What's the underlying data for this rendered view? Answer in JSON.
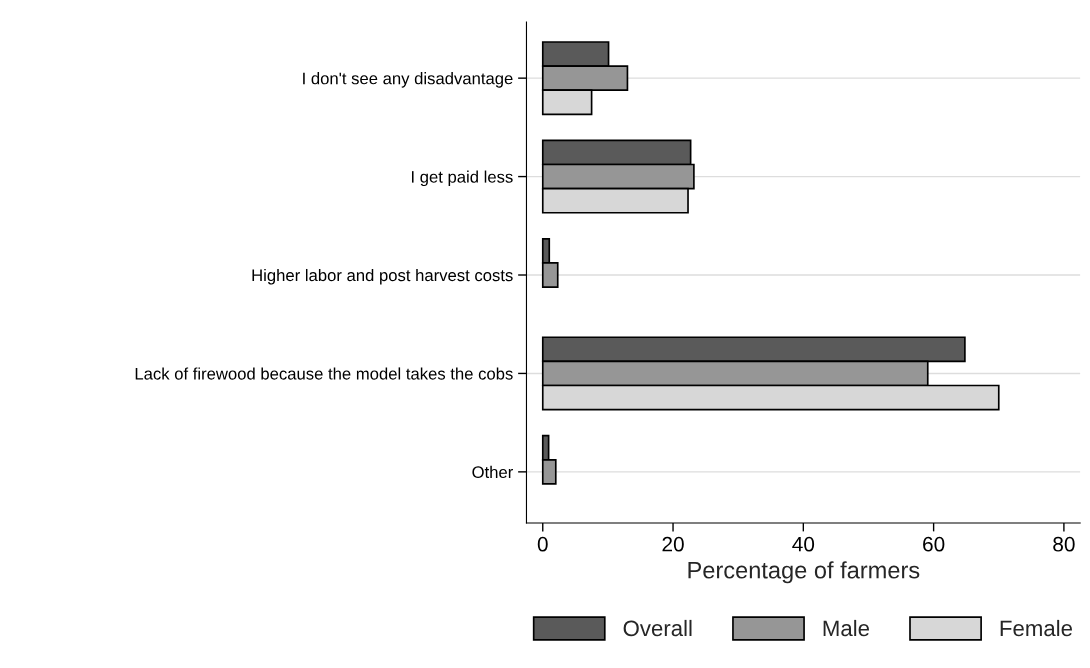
{
  "chart_data": {
    "type": "bar",
    "orientation": "horizontal",
    "xlabel": "Percentage of farmers",
    "categories": [
      "I don't see any disadvantage",
      "I get paid less",
      "Higher labor and post harvest costs",
      "Lack of firewood because the model takes the cobs",
      "Other"
    ],
    "series": [
      {
        "name": "Overall",
        "color": "#5a5a5a",
        "values": [
          10.1,
          22.7,
          1.0,
          64.8,
          0.9
        ]
      },
      {
        "name": "Male",
        "color": "#969696",
        "values": [
          13.0,
          23.2,
          2.3,
          59.1,
          2.0
        ]
      },
      {
        "name": "Female",
        "color": "#d7d7d7",
        "values": [
          7.5,
          22.3,
          null,
          70.0,
          null
        ]
      }
    ],
    "xlim": [
      -2.5,
      82.5
    ],
    "xticks": [
      0,
      20,
      40,
      60,
      80
    ],
    "grid": "y",
    "legend": "bottom"
  }
}
